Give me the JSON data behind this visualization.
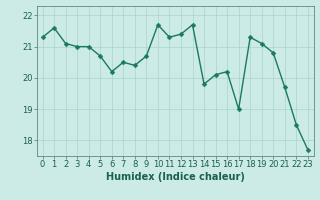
{
  "x": [
    0,
    1,
    2,
    3,
    4,
    5,
    6,
    7,
    8,
    9,
    10,
    11,
    12,
    13,
    14,
    15,
    16,
    17,
    18,
    19,
    20,
    21,
    22,
    23
  ],
  "y": [
    21.3,
    21.6,
    21.1,
    21.0,
    21.0,
    20.7,
    20.2,
    20.5,
    20.4,
    20.7,
    21.7,
    21.3,
    21.4,
    21.7,
    19.8,
    20.1,
    20.2,
    19.0,
    21.3,
    21.1,
    20.8,
    19.7,
    18.5,
    17.7
  ],
  "line_color": "#1a7a5e",
  "marker_color": "#1a7a5e",
  "bg_color": "#cceae6",
  "grid_color": "#aad4ce",
  "xlabel": "Humidex (Indice chaleur)",
  "ylim": [
    17.5,
    22.3
  ],
  "xlim": [
    -0.5,
    23.5
  ],
  "yticks": [
    18,
    19,
    20,
    21,
    22
  ],
  "xticks": [
    0,
    1,
    2,
    3,
    4,
    5,
    6,
    7,
    8,
    9,
    10,
    11,
    12,
    13,
    14,
    15,
    16,
    17,
    18,
    19,
    20,
    21,
    22,
    23
  ],
  "tick_label_color": "#1a5f52",
  "axis_color": "#5a8a80",
  "font_size_label": 7.0,
  "font_size_tick": 6.0,
  "line_width": 1.0,
  "marker_size": 2.5
}
